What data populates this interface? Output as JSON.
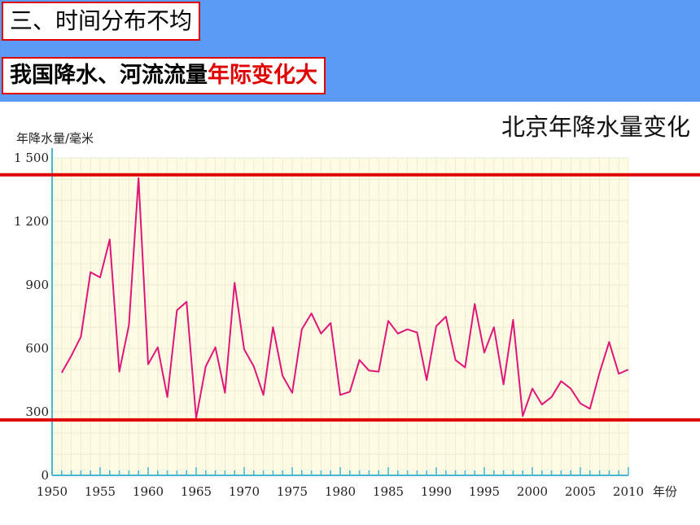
{
  "header": {
    "section_title": "三、时间分布不均",
    "subtitle_prefix": "我国降水、河流流量",
    "subtitle_highlight": "年际变化大"
  },
  "colors": {
    "header_band": "#5b9bf5",
    "plot_bg": "#fdfbe3",
    "series_line": "#e0157a",
    "reference_lines": "#e00000",
    "axis": "#49b8d8"
  },
  "chart_data": {
    "type": "line",
    "title": "北京年降水量变化",
    "ylabel": "年降水量/毫米",
    "xlabel": "年份",
    "xlim": [
      1950,
      2010
    ],
    "ylim": [
      0,
      1500
    ],
    "xticks": [
      1950,
      1955,
      1960,
      1965,
      1970,
      1975,
      1980,
      1985,
      1990,
      1995,
      2000,
      2005,
      2010
    ],
    "yticks": [
      {
        "value": 0,
        "label": "0"
      },
      {
        "value": 300,
        "label": "300"
      },
      {
        "value": 600,
        "label": "600"
      },
      {
        "value": 900,
        "label": "900"
      },
      {
        "value": 1200,
        "label": "1 200"
      },
      {
        "value": 1500,
        "label": "1 500"
      }
    ],
    "grid": true,
    "x": [
      1951,
      1952,
      1953,
      1954,
      1955,
      1956,
      1957,
      1958,
      1959,
      1960,
      1961,
      1962,
      1963,
      1964,
      1965,
      1966,
      1967,
      1968,
      1969,
      1970,
      1971,
      1972,
      1973,
      1974,
      1975,
      1976,
      1977,
      1978,
      1979,
      1980,
      1981,
      1982,
      1983,
      1984,
      1985,
      1986,
      1987,
      1988,
      1989,
      1990,
      1991,
      1992,
      1993,
      1994,
      1995,
      1996,
      1997,
      1998,
      1999,
      2000,
      2001,
      2002,
      2003,
      2004,
      2005,
      2006,
      2007,
      2008,
      2009,
      2010
    ],
    "series": [
      {
        "values": [
          485,
          565,
          655,
          960,
          935,
          1115,
          490,
          710,
          1405,
          525,
          605,
          370,
          780,
          820,
          270,
          515,
          605,
          390,
          910,
          595,
          515,
          380,
          700,
          470,
          390,
          690,
          765,
          670,
          720,
          380,
          395,
          545,
          495,
          490,
          730,
          670,
          690,
          675,
          450,
          705,
          750,
          545,
          510,
          810,
          580,
          700,
          430,
          735,
          280,
          410,
          335,
          370,
          445,
          410,
          340,
          315,
          485,
          630,
          480,
          500
        ]
      }
    ],
    "reference_lines": [
      1420,
      262
    ]
  }
}
